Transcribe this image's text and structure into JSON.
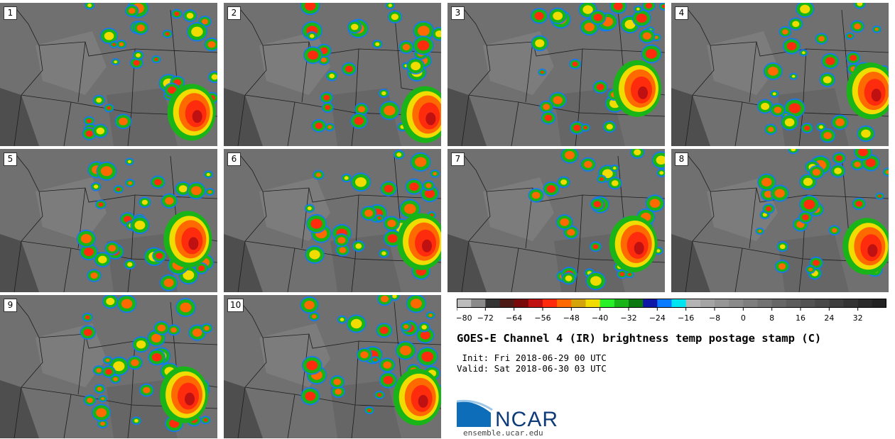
{
  "colors": {
    "scale": [
      "#bcbcbc",
      "#8a8a8a",
      "#343434",
      "#4d1a16",
      "#7a0a0a",
      "#bf1111",
      "#ff2b0d",
      "#ff6a00",
      "#d4a40a",
      "#f0dc00",
      "#28f028",
      "#18b418",
      "#0a7a10",
      "#1018a8",
      "#0a7aff",
      "#00e6f0",
      "#b4b4b4",
      "#a4a4a4",
      "#969696",
      "#8a8a8a",
      "#7e7e7e",
      "#727272",
      "#666666",
      "#5c5c5c",
      "#525252",
      "#484848",
      "#3e3e3e",
      "#343434",
      "#2a2a2a",
      "#222222"
    ]
  },
  "panels": [
    {
      "label": "1"
    },
    {
      "label": "2"
    },
    {
      "label": "3"
    },
    {
      "label": "4"
    },
    {
      "label": "5"
    },
    {
      "label": "6"
    },
    {
      "label": "7"
    },
    {
      "label": "8"
    },
    {
      "label": "9"
    },
    {
      "label": "10"
    }
  ],
  "colorbar": {
    "ticks": [
      "−80",
      "−72",
      "−64",
      "−56",
      "−48",
      "−40",
      "−32",
      "−24",
      "−16",
      "−8",
      "0",
      "8",
      "16",
      "24",
      "32"
    ]
  },
  "title": "GOES-E Channel 4 (IR) brightness temp postage stamp (C)",
  "init_line": " Init: Fri 2018-06-29 00 UTC",
  "valid_line": "Valid: Sat 2018-06-30 03 UTC",
  "logo": {
    "text": "NCAR",
    "url": "ensemble.ucar.edu"
  }
}
